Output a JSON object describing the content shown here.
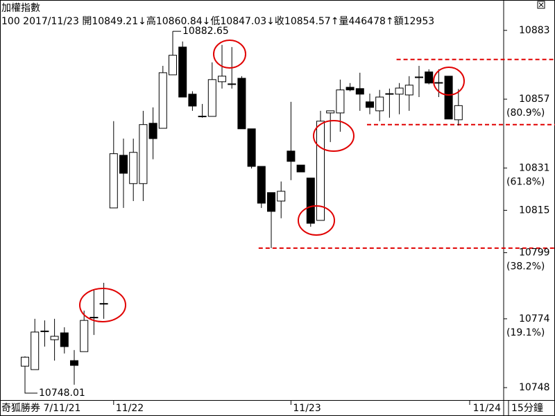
{
  "chart_data": {
    "type": "candlestick",
    "title": "加權指數",
    "info_line": "100 2017/11/23 開10849.21↓高10860.84↓低10847.03↓收10854.57↑量446478↑額12953",
    "categories": [
      null,
      null,
      null,
      null,
      null,
      null,
      null,
      null,
      null,
      "11/22",
      null,
      null,
      null,
      null,
      null,
      null,
      null,
      null,
      null,
      null,
      null,
      null,
      null,
      null,
      null,
      null,
      null,
      "11/23",
      null,
      null,
      null,
      null,
      null,
      null,
      null,
      null,
      null,
      null,
      null,
      null,
      null,
      null,
      null,
      null,
      null
    ],
    "x_end_label": "11/24",
    "footer_left": "奇狐勝券 7/11/21",
    "period": "15分鐘",
    "open": [
      10756.1,
      10754.8,
      10769.2,
      10766.1,
      10768.7,
      10758.2,
      10761.6,
      10774.4,
      10779.6,
      10815.9,
      10835.8,
      10825.1,
      10825.1,
      10847.9,
      10846.0,
      10866.2,
      10876.7,
      10858.9,
      10850.5,
      10850.5,
      10863.6,
      10862.6,
      10864.9,
      10845.8,
      10831.6,
      10821.7,
      10818.5,
      10837.4,
      10832.1,
      10827.2,
      10811.2,
      10851.8,
      10851.8,
      10861.5,
      10861.0,
      10856.0,
      10852.6,
      10858.9,
      10858.9,
      10858.6,
      10865.2,
      10867.3,
      10863.1,
      10865.7,
      10849.21
    ],
    "high": [
      10759.8,
      10774.0,
      10773.4,
      10774.0,
      10770.8,
      10762.2,
      10777.1,
      10785.0,
      10787.6,
      10848.7,
      10842.1,
      10842.1,
      10852.6,
      10853.9,
      10869.6,
      10882.65,
      10878.8,
      10860.0,
      10855.2,
      10870.9,
      10877.5,
      10876.7,
      10865.7,
      10845.8,
      10831.6,
      10821.7,
      10825.9,
      10856.0,
      10832.1,
      10827.2,
      10852.6,
      10852.6,
      10864.4,
      10863.1,
      10867.0,
      10859.1,
      10860.5,
      10861.0,
      10863.1,
      10865.7,
      10869.6,
      10868.3,
      10868.3,
      10865.7,
      10860.84
    ],
    "low": [
      10748.01,
      10754.8,
      10763.5,
      10758.2,
      10760.9,
      10749.1,
      10761.6,
      10767.9,
      10774.0,
      10815.9,
      10815.9,
      10818.5,
      10818.5,
      10834.3,
      10846.0,
      10866.2,
      10857.8,
      10852.6,
      10850.0,
      10850.5,
      10861.0,
      10861.0,
      10845.8,
      10830.8,
      10815.9,
      10800.7,
      10812.0,
      10826.4,
      10829.5,
      10808.8,
      10811.2,
      10840.8,
      10844.7,
      10860.0,
      10852.6,
      10851.3,
      10848.7,
      10850.0,
      10851.3,
      10852.6,
      10857.8,
      10862.6,
      10857.8,
      10849.5,
      10847.03
    ],
    "close": [
      10759.5,
      10769.0,
      10769.4,
      10767.4,
      10763.5,
      10756.4,
      10773.4,
      10774.6,
      10779.8,
      10836.4,
      10829.0,
      10836.9,
      10847.4,
      10842.1,
      10867.0,
      10873.6,
      10857.8,
      10854.4,
      10850.6,
      10864.4,
      10865.7,
      10862.8,
      10845.8,
      10831.6,
      10817.7,
      10814.6,
      10822.2,
      10833.5,
      10829.5,
      10810.1,
      10848.7,
      10852.6,
      10860.5,
      10860.5,
      10858.9,
      10853.9,
      10857.8,
      10859.1,
      10861.2,
      10862.3,
      10865.4,
      10863.1,
      10863.3,
      10849.5,
      10854.57
    ],
    "up_color": "#ffffff",
    "down_color": "#000000",
    "ylim": [
      10743.3,
      10884.0
    ],
    "yticks": [
      10883,
      10857,
      10831,
      10815,
      10799,
      10774,
      10748
    ],
    "fib_labels": [
      {
        "value": 10857,
        "label": "(80.9%)"
      },
      {
        "value": 10831,
        "label": "(61.8%)"
      },
      {
        "value": 10799,
        "label": "(38.2%)"
      },
      {
        "value": 10774,
        "label": "(19.1%)"
      }
    ],
    "annotations": [
      {
        "text": "10882.65",
        "index": 15
      },
      {
        "text": "10748.01",
        "index": 0
      }
    ],
    "line_color": "#e00000",
    "horizontal_lines": [
      {
        "value": 10872.0,
        "start": 38
      },
      {
        "value": 10847.4,
        "start": 35
      },
      {
        "value": 10800.7,
        "start": 24
      }
    ],
    "grid": false
  }
}
